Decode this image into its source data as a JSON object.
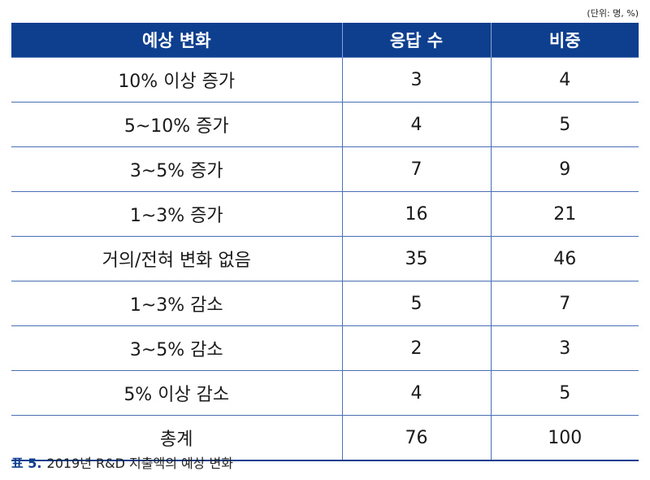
{
  "unit_note": "(단위: 명, %)",
  "headers": [
    "예상 변화",
    "응답 수",
    "비중"
  ],
  "rows": [
    {
      "label": "10% 이상 증가",
      "count": "3",
      "share": "4"
    },
    {
      "label": "5~10% 증가",
      "count": "4",
      "share": "5"
    },
    {
      "label": "3~5% 증가",
      "count": "7",
      "share": "9"
    },
    {
      "label": "1~3% 증가",
      "count": "16",
      "share": "21"
    },
    {
      "label": "거의/전혀 변화 없음",
      "count": "35",
      "share": "46"
    },
    {
      "label": "1~3% 감소",
      "count": "5",
      "share": "7"
    },
    {
      "label": "3~5% 감소",
      "count": "2",
      "share": "3"
    },
    {
      "label": "5% 이상 감소",
      "count": "4",
      "share": "5"
    },
    {
      "label": "총계",
      "count": "76",
      "share": "100"
    }
  ],
  "caption": {
    "label": "표 5.",
    "text": "2019년 R&D 지출액의 예상 변화"
  },
  "colors": {
    "header_bg": "#0e3f8f",
    "grid": "#4a6fb5"
  }
}
